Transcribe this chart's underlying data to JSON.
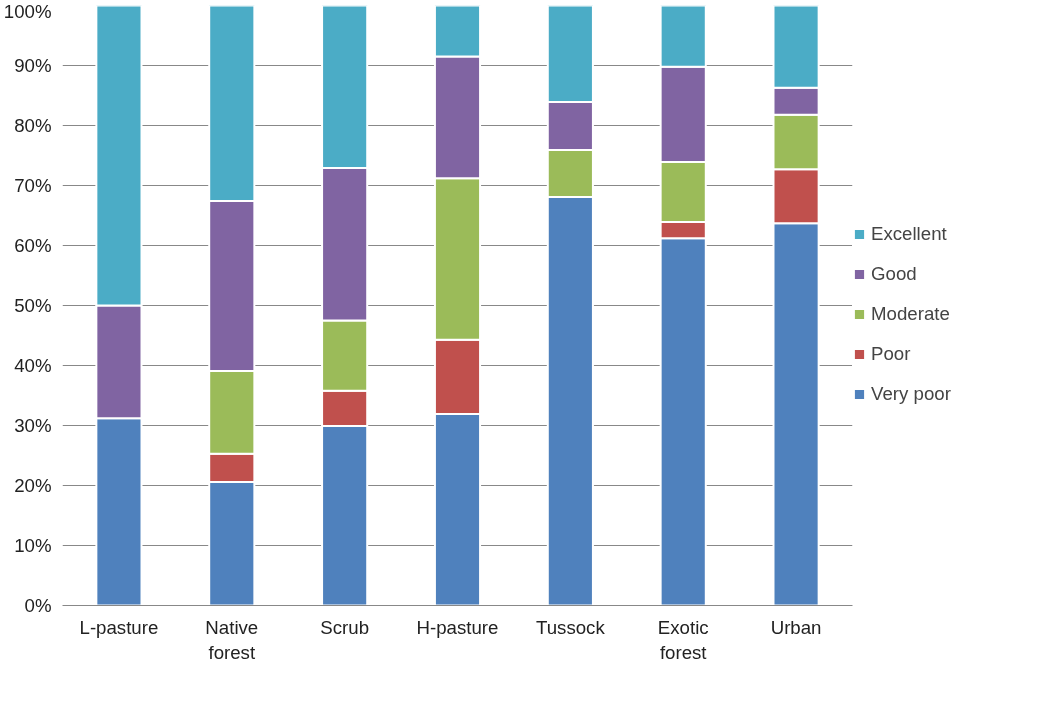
{
  "chart_data": {
    "type": "bar",
    "stacked": true,
    "categories": [
      "L-pasture",
      "Native forest",
      "Scrub",
      "H-pasture",
      "Tussock",
      "Exotic forest",
      "Urban"
    ],
    "series": [
      {
        "name": "Very poor",
        "color": "#4f81bd",
        "values": [
          31.2,
          20.6,
          29.9,
          31.9,
          68.1,
          61.2,
          63.7
        ]
      },
      {
        "name": "Poor",
        "color": "#c0504d",
        "values": [
          0,
          4.7,
          5.9,
          12.4,
          0,
          2.7,
          9.0
        ]
      },
      {
        "name": "Moderate",
        "color": "#9bbb59",
        "values": [
          0,
          13.8,
          11.7,
          26.9,
          7.8,
          10.0,
          9.1
        ]
      },
      {
        "name": "Good",
        "color": "#8064a2",
        "values": [
          18.8,
          28.3,
          25.4,
          20.3,
          8.0,
          15.9,
          4.5
        ]
      },
      {
        "name": "Excellent",
        "color": "#4bacc6",
        "values": [
          50.0,
          32.6,
          27.1,
          8.5,
          16.1,
          10.2,
          13.7
        ]
      }
    ],
    "ylim": [
      0,
      100
    ],
    "yticks": [
      {
        "value": 0,
        "label": "0%"
      },
      {
        "value": 10,
        "label": "10%"
      },
      {
        "value": 20,
        "label": "20%"
      },
      {
        "value": 30,
        "label": "30%"
      },
      {
        "value": 40,
        "label": "40%"
      },
      {
        "value": 50,
        "label": "50%"
      },
      {
        "value": 60,
        "label": "60%"
      },
      {
        "value": 70,
        "label": "70%"
      },
      {
        "value": 80,
        "label": "80%"
      },
      {
        "value": 90,
        "label": "90%"
      },
      {
        "value": 100,
        "label": "100%"
      }
    ],
    "grid": "y",
    "legend": "right"
  }
}
